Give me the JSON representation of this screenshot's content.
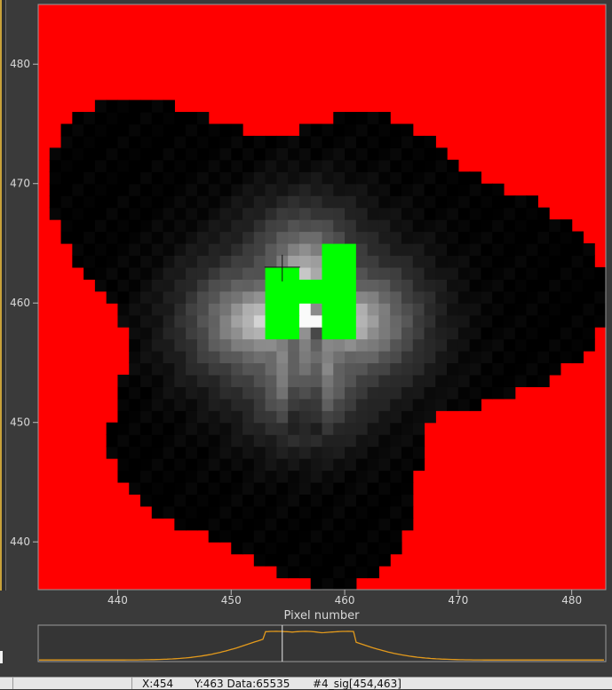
{
  "plot": {
    "xlabel": "Pixel number",
    "x_ticks": [
      "440",
      "450",
      "460",
      "470",
      "480"
    ],
    "y_ticks": [
      "480",
      "470",
      "460",
      "450",
      "440"
    ],
    "x_range": [
      433,
      483
    ],
    "y_range": [
      436,
      485
    ],
    "mask_color": "#ff0000",
    "saturation_color": "#00ff00",
    "cursor": {
      "x": 454.5,
      "y": 463
    }
  },
  "profile": {
    "line_color": "#e39a1c",
    "cursor_x": 454.5
  },
  "status": {
    "x_label": "X:454",
    "y_data_label": "Y:463 Data:65535",
    "frame_label": "#4_sig[454,463]"
  }
}
